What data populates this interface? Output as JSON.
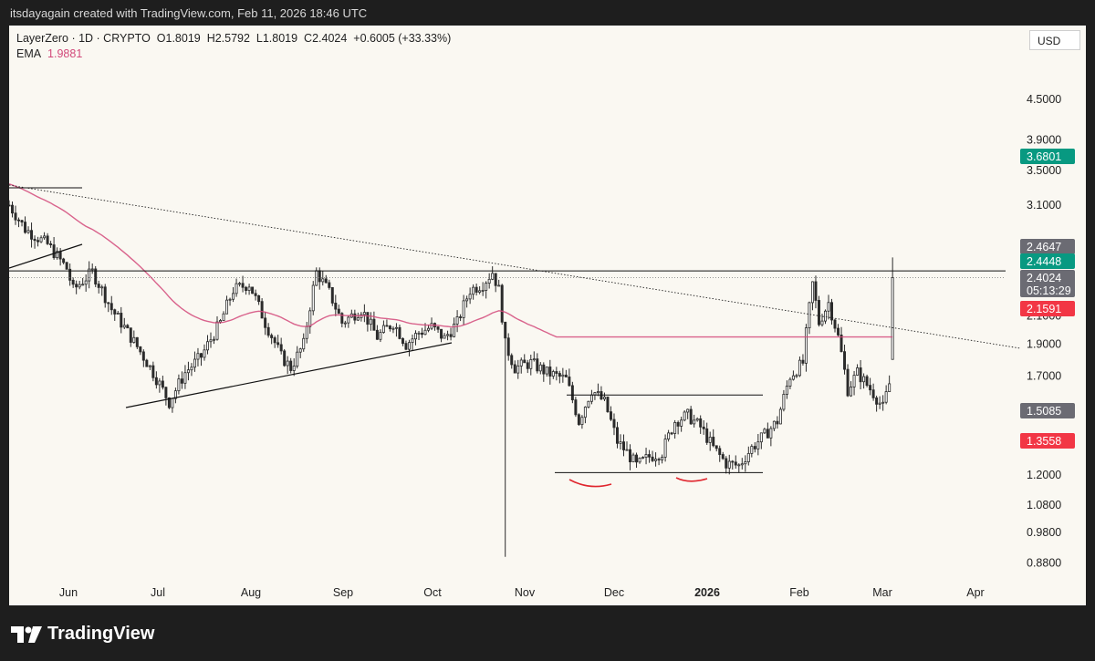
{
  "attribution": "itsdayagain created with TradingView.com, Feb 11, 2026 18:46 UTC",
  "legend": {
    "symbol": "LayerZero · 1D · CRYPTO",
    "open": "O1.8019",
    "high": "H2.5792",
    "low": "L1.8019",
    "close": "C2.4024",
    "change": "+0.6005 (+33.33%)",
    "ema_label": "EMA",
    "ema_value": "1.9881"
  },
  "currency": "USD",
  "brand": "TradingView",
  "colors": {
    "up": "#ffffff",
    "down": "#2b2b2b",
    "ema": "#d2497a",
    "green_tag": "#089981",
    "red_tag": "#f23645",
    "gray_tag": "#6b6b73",
    "background": "#faf8f2"
  },
  "chart_data": {
    "type": "candlestick",
    "symbol": "LayerZero",
    "interval": "1D",
    "price_scale": "log",
    "x_ticks": [
      "Jun",
      "Jul",
      "Aug",
      "Sep",
      "Oct",
      "Nov",
      "Dec",
      "2026",
      "Feb",
      "Mar",
      "Apr"
    ],
    "y_ticks": [
      "4.5000",
      "3.9000",
      "3.5000",
      "3.1000",
      "2.1000",
      "1.9000",
      "1.7000",
      "1.2000",
      "1.0800",
      "0.9800",
      "0.8800"
    ],
    "price_tags": [
      {
        "label": "3.6801",
        "price": 3.6801,
        "color": "green"
      },
      {
        "label": "2.4647",
        "price": 2.4647,
        "color": "gray"
      },
      {
        "label": "2.4448",
        "price": 2.4448,
        "color": "green"
      },
      {
        "label": "2.4024",
        "sublabel": "05:13:29",
        "price": 2.4024,
        "color": "gray"
      },
      {
        "label": "2.1591",
        "price": 2.1591,
        "color": "red"
      },
      {
        "label": "1.5085",
        "price": 1.5085,
        "color": "gray"
      },
      {
        "label": "1.3558",
        "price": 1.3558,
        "color": "red"
      }
    ],
    "ema": {
      "name": "EMA",
      "last": 1.9881
    },
    "ohlc_last": {
      "open": 1.8019,
      "high": 2.5792,
      "low": 1.8019,
      "close": 2.4024
    },
    "horizontal_levels": [
      2.46,
      1.59,
      1.21
    ],
    "annotations": [
      "descending trendline",
      "rising support line",
      "double bottom arcs"
    ]
  }
}
